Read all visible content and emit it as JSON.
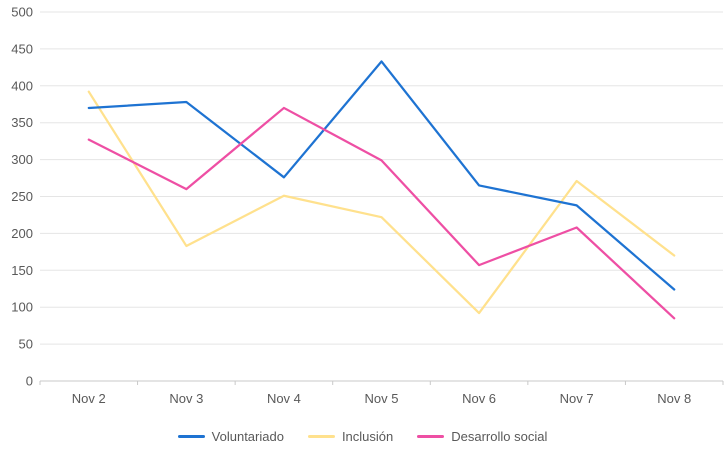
{
  "chart_data": {
    "type": "line",
    "title": "",
    "xlabel": "",
    "ylabel": "",
    "categories": [
      "Nov 2",
      "Nov 3",
      "Nov 4",
      "Nov 5",
      "Nov 6",
      "Nov 7",
      "Nov 8"
    ],
    "series": [
      {
        "name": "Voluntariado",
        "color": "#1e73d2",
        "values": [
          370,
          378,
          276,
          433,
          265,
          238,
          124
        ]
      },
      {
        "name": "Inclusión",
        "color": "#ffe18d",
        "values": [
          392,
          183,
          251,
          222,
          92,
          271,
          170
        ]
      },
      {
        "name": "Desarrollo social",
        "color": "#ee4fa4",
        "values": [
          327,
          260,
          370,
          299,
          157,
          208,
          85
        ]
      }
    ],
    "ylim": [
      0,
      500
    ],
    "ytick_step": 50,
    "yticks": [
      0,
      50,
      100,
      150,
      200,
      250,
      300,
      350,
      400,
      450,
      500
    ],
    "grid": true,
    "legend_position": "bottom",
    "style": {
      "gridline_color": "#e5e5e5",
      "axis_color": "#c9c9c9",
      "label_color": "#595959"
    }
  }
}
